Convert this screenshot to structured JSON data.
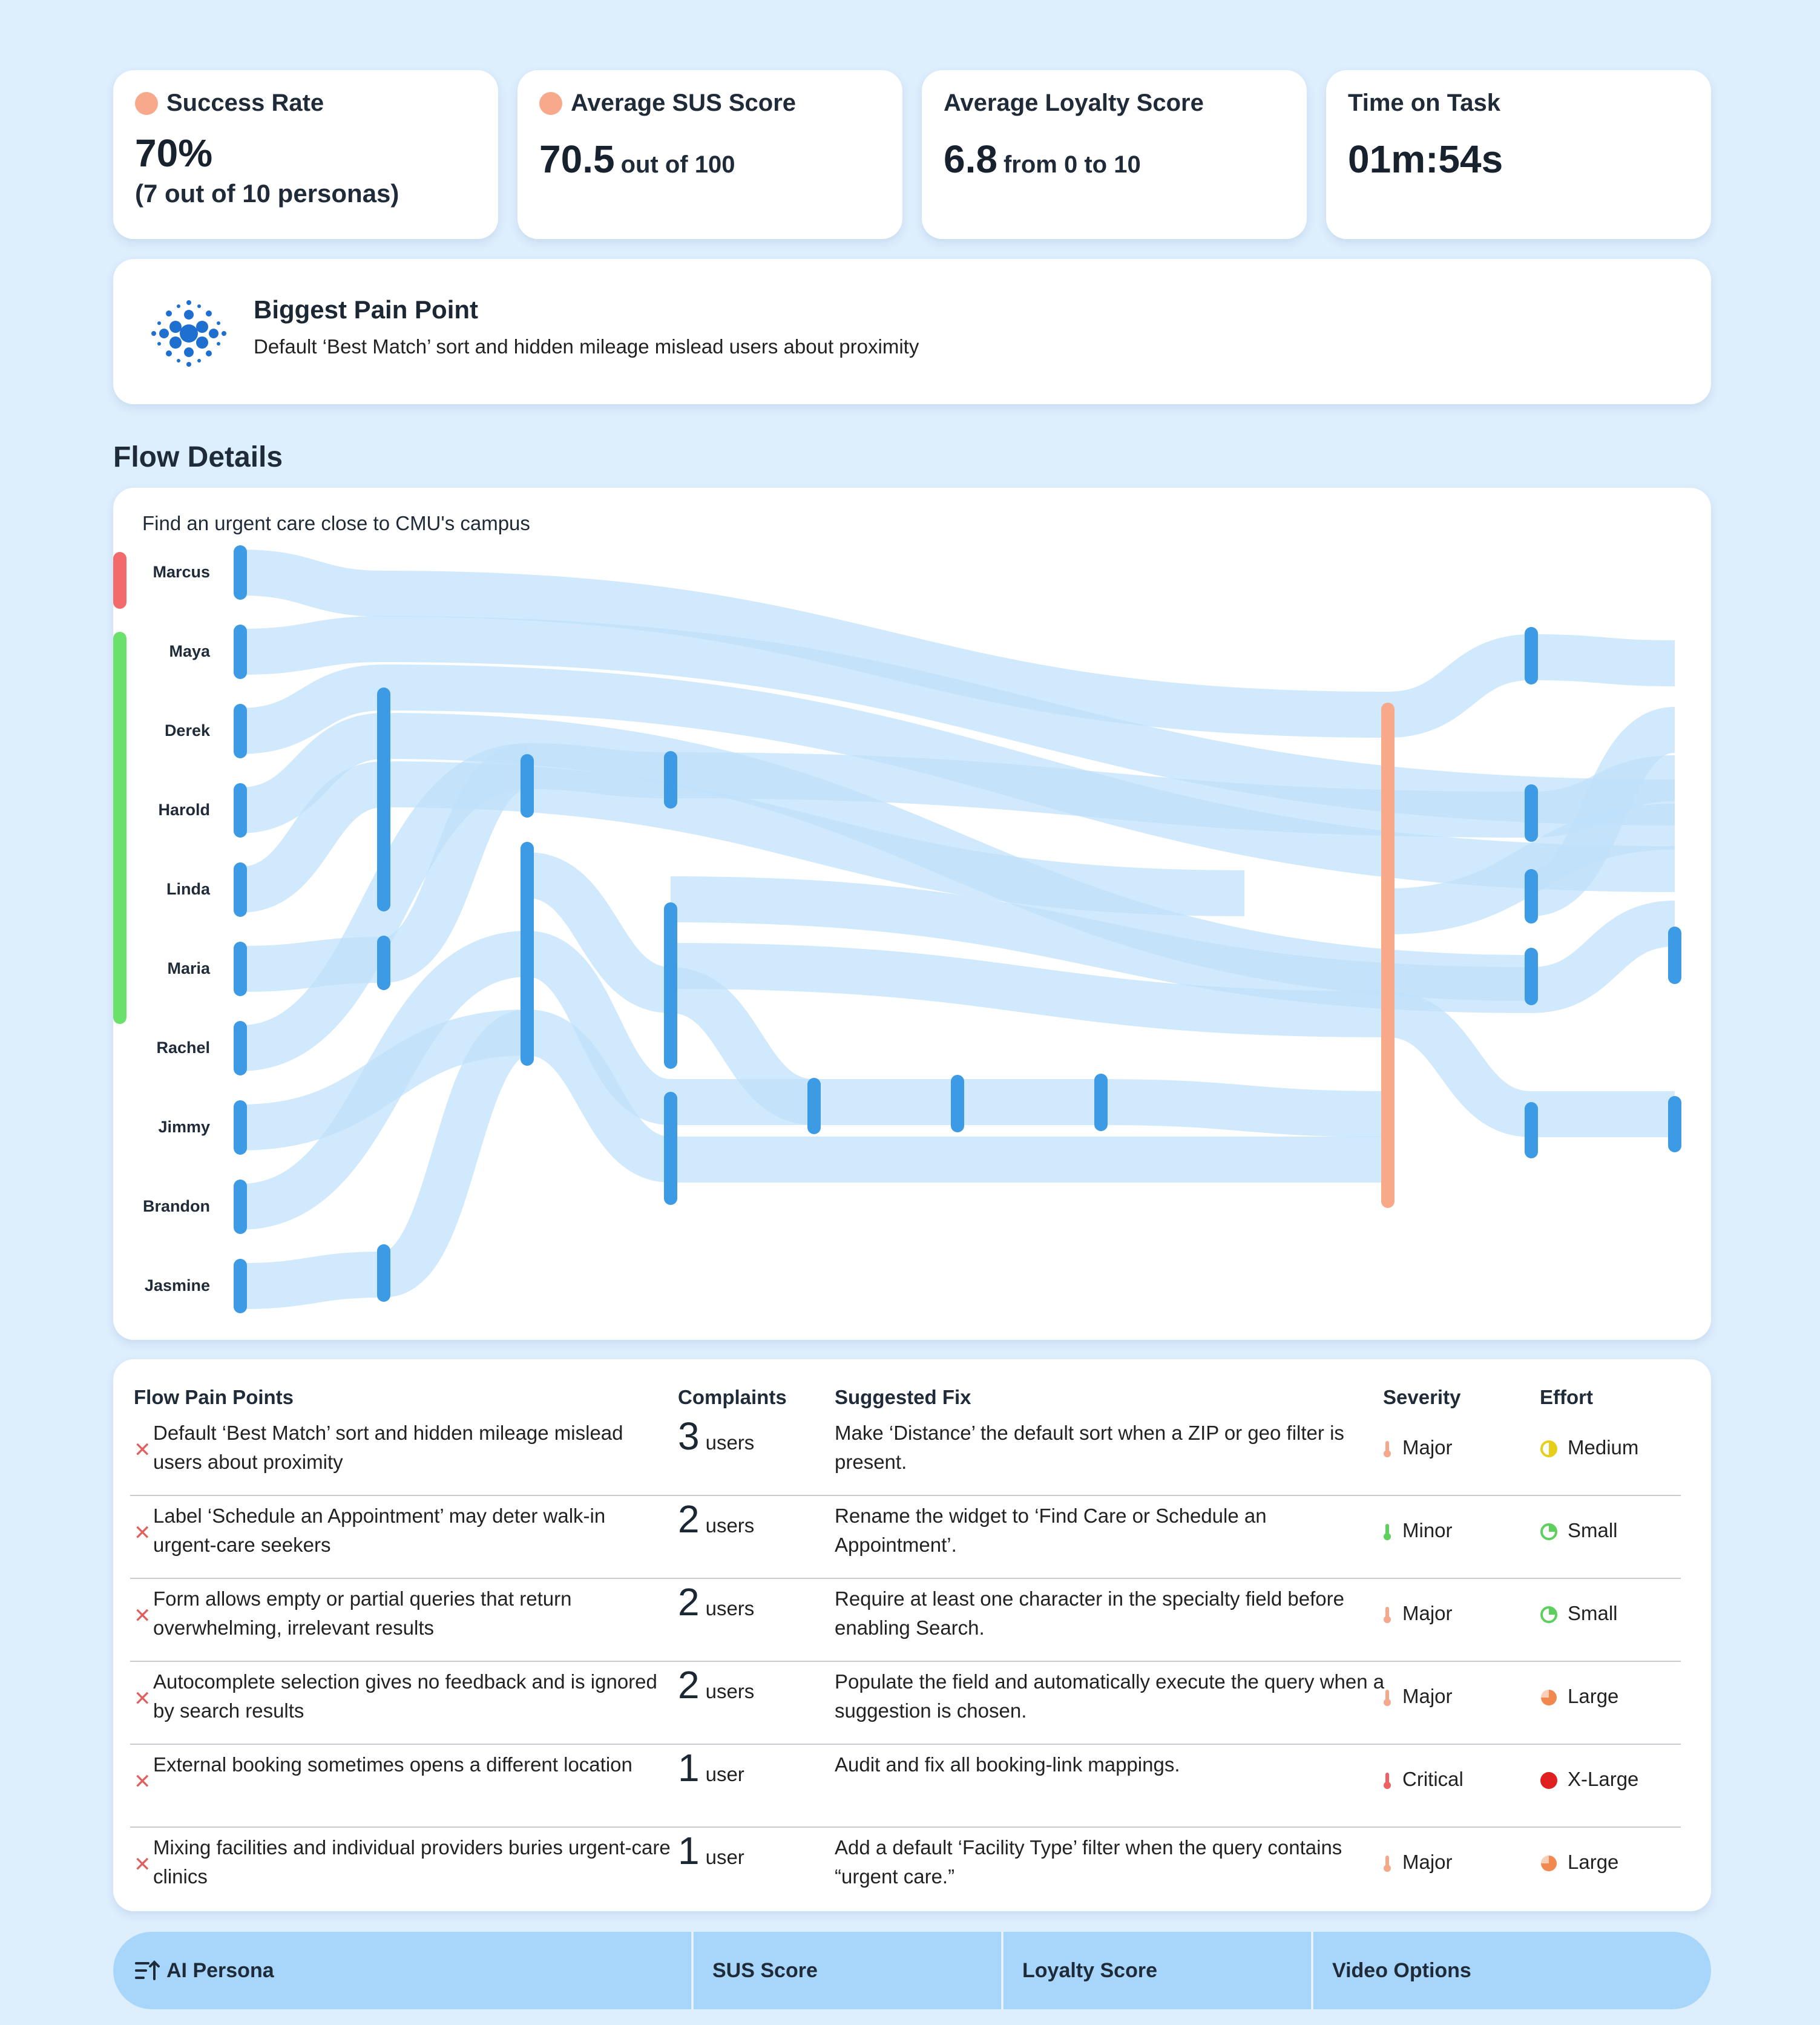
{
  "metrics": {
    "success": {
      "title": "Success Rate",
      "value": "70%",
      "sub": "(7 out of 10 personas)"
    },
    "sus": {
      "title": "Average SUS Score",
      "value": "70.5",
      "unit": "out of 100"
    },
    "loyalty": {
      "title": "Average Loyalty Score",
      "value": "6.8",
      "unit": "from 0 to 10"
    },
    "time": {
      "title": "Time on Task",
      "value": "01m:54s"
    }
  },
  "biggest_pain": {
    "title": "Biggest Pain Point",
    "description": "Default ‘Best Match’ sort and hidden mileage mislead users about proximity"
  },
  "flow": {
    "section_title": "Flow Details",
    "task": "Find an urgent care close to CMU's campus",
    "personas": [
      "Marcus",
      "Maya",
      "Derek",
      "Harold",
      "Linda",
      "Maria",
      "Rachel",
      "Jimmy",
      "Brandon",
      "Jasmine"
    ],
    "colors": {
      "node": "#3d9be6",
      "link": "#bfe0fb",
      "failure": "#f26b6b",
      "success": "#6be06b",
      "merge": "#f7a98a"
    }
  },
  "pain_table": {
    "headers": {
      "pain": "Flow Pain Points",
      "complaints": "Complaints",
      "fix": "Suggested Fix",
      "severity": "Severity",
      "effort": "Effort"
    },
    "rows": [
      {
        "pain": "Default ‘Best Match’ sort and hidden mileage mislead users about proximity",
        "count": "3",
        "unit": "users",
        "fix": "Make ‘Distance’ the default sort when a ZIP or geo filter is present.",
        "severity": "Major",
        "effort": "Medium"
      },
      {
        "pain": "Label ‘Schedule an Appointment’ may deter walk-in urgent-care seekers",
        "count": "2",
        "unit": "users",
        "fix": "Rename the widget to ‘Find Care or Schedule an Appointment’.",
        "severity": "Minor",
        "effort": "Small"
      },
      {
        "pain": "Form allows empty or partial queries that return overwhelming, irrelevant results",
        "count": "2",
        "unit": "users",
        "fix": "Require at least one character in the specialty field before enabling Search.",
        "severity": "Major",
        "effort": "Small"
      },
      {
        "pain": "Autocomplete selection gives no feedback and is ignored by search results",
        "count": "2",
        "unit": "users",
        "fix": "Populate the field and automatically execute the query when a suggestion is chosen.",
        "severity": "Major",
        "effort": "Large"
      },
      {
        "pain": "External booking sometimes opens a different location",
        "count": "1",
        "unit": "user",
        "fix": "Audit and fix all booking-link mappings.",
        "severity": "Critical",
        "effort": "X-Large"
      },
      {
        "pain": "Mixing facilities and individual providers buries urgent-care clinics",
        "count": "1",
        "unit": "user",
        "fix": "Add a default ‘Facility Type’ filter when the query contains “urgent care.”",
        "severity": "Major",
        "effort": "Large"
      }
    ]
  },
  "severity_colors": {
    "Major": "#f5a98c",
    "Minor": "#5ccf5c",
    "Critical": "#ef6060"
  },
  "effort_colors": {
    "Medium": "#e5cf1a",
    "Small": "#5ccf5c",
    "Large": "#f08850",
    "X-Large": "#e02020"
  },
  "bottom_bar": {
    "persona": "AI Persona",
    "sus": "SUS Score",
    "loyalty": "Loyalty Score",
    "video": "Video Options"
  }
}
